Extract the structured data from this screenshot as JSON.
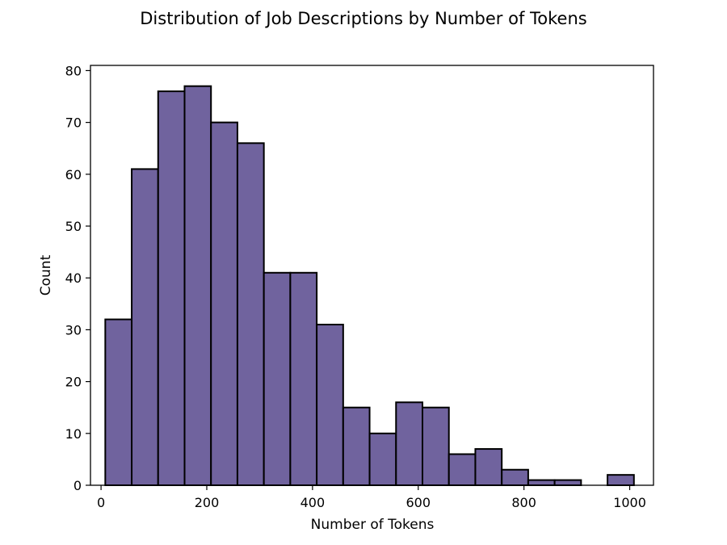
{
  "chart_data": {
    "type": "bar",
    "title": "Distribution of Job Descriptions by Number of Tokens",
    "xlabel": "Number of Tokens",
    "ylabel": "Count",
    "xlim": [
      -20,
      1045
    ],
    "ylim": [
      0,
      81
    ],
    "xticks": [
      0,
      200,
      400,
      600,
      800,
      1000
    ],
    "yticks": [
      0,
      10,
      20,
      30,
      40,
      50,
      60,
      70,
      80
    ],
    "grid": false,
    "bar_color": "#70639e",
    "edge_color": "#000000",
    "bins": [
      {
        "x0": 8,
        "x1": 58,
        "value": 32
      },
      {
        "x0": 58,
        "x1": 108,
        "value": 61
      },
      {
        "x0": 108,
        "x1": 158,
        "value": 76
      },
      {
        "x0": 158,
        "x1": 208,
        "value": 77
      },
      {
        "x0": 208,
        "x1": 258,
        "value": 70
      },
      {
        "x0": 258,
        "x1": 308,
        "value": 66
      },
      {
        "x0": 308,
        "x1": 358,
        "value": 41
      },
      {
        "x0": 358,
        "x1": 408,
        "value": 41
      },
      {
        "x0": 408,
        "x1": 458,
        "value": 31
      },
      {
        "x0": 458,
        "x1": 508,
        "value": 15
      },
      {
        "x0": 508,
        "x1": 558,
        "value": 10
      },
      {
        "x0": 558,
        "x1": 608,
        "value": 16
      },
      {
        "x0": 608,
        "x1": 658,
        "value": 15
      },
      {
        "x0": 658,
        "x1": 708,
        "value": 6
      },
      {
        "x0": 708,
        "x1": 758,
        "value": 7
      },
      {
        "x0": 758,
        "x1": 808,
        "value": 3
      },
      {
        "x0": 808,
        "x1": 858,
        "value": 1
      },
      {
        "x0": 858,
        "x1": 908,
        "value": 1
      },
      {
        "x0": 908,
        "x1": 958,
        "value": 0
      },
      {
        "x0": 958,
        "x1": 1008,
        "value": 2
      }
    ]
  }
}
